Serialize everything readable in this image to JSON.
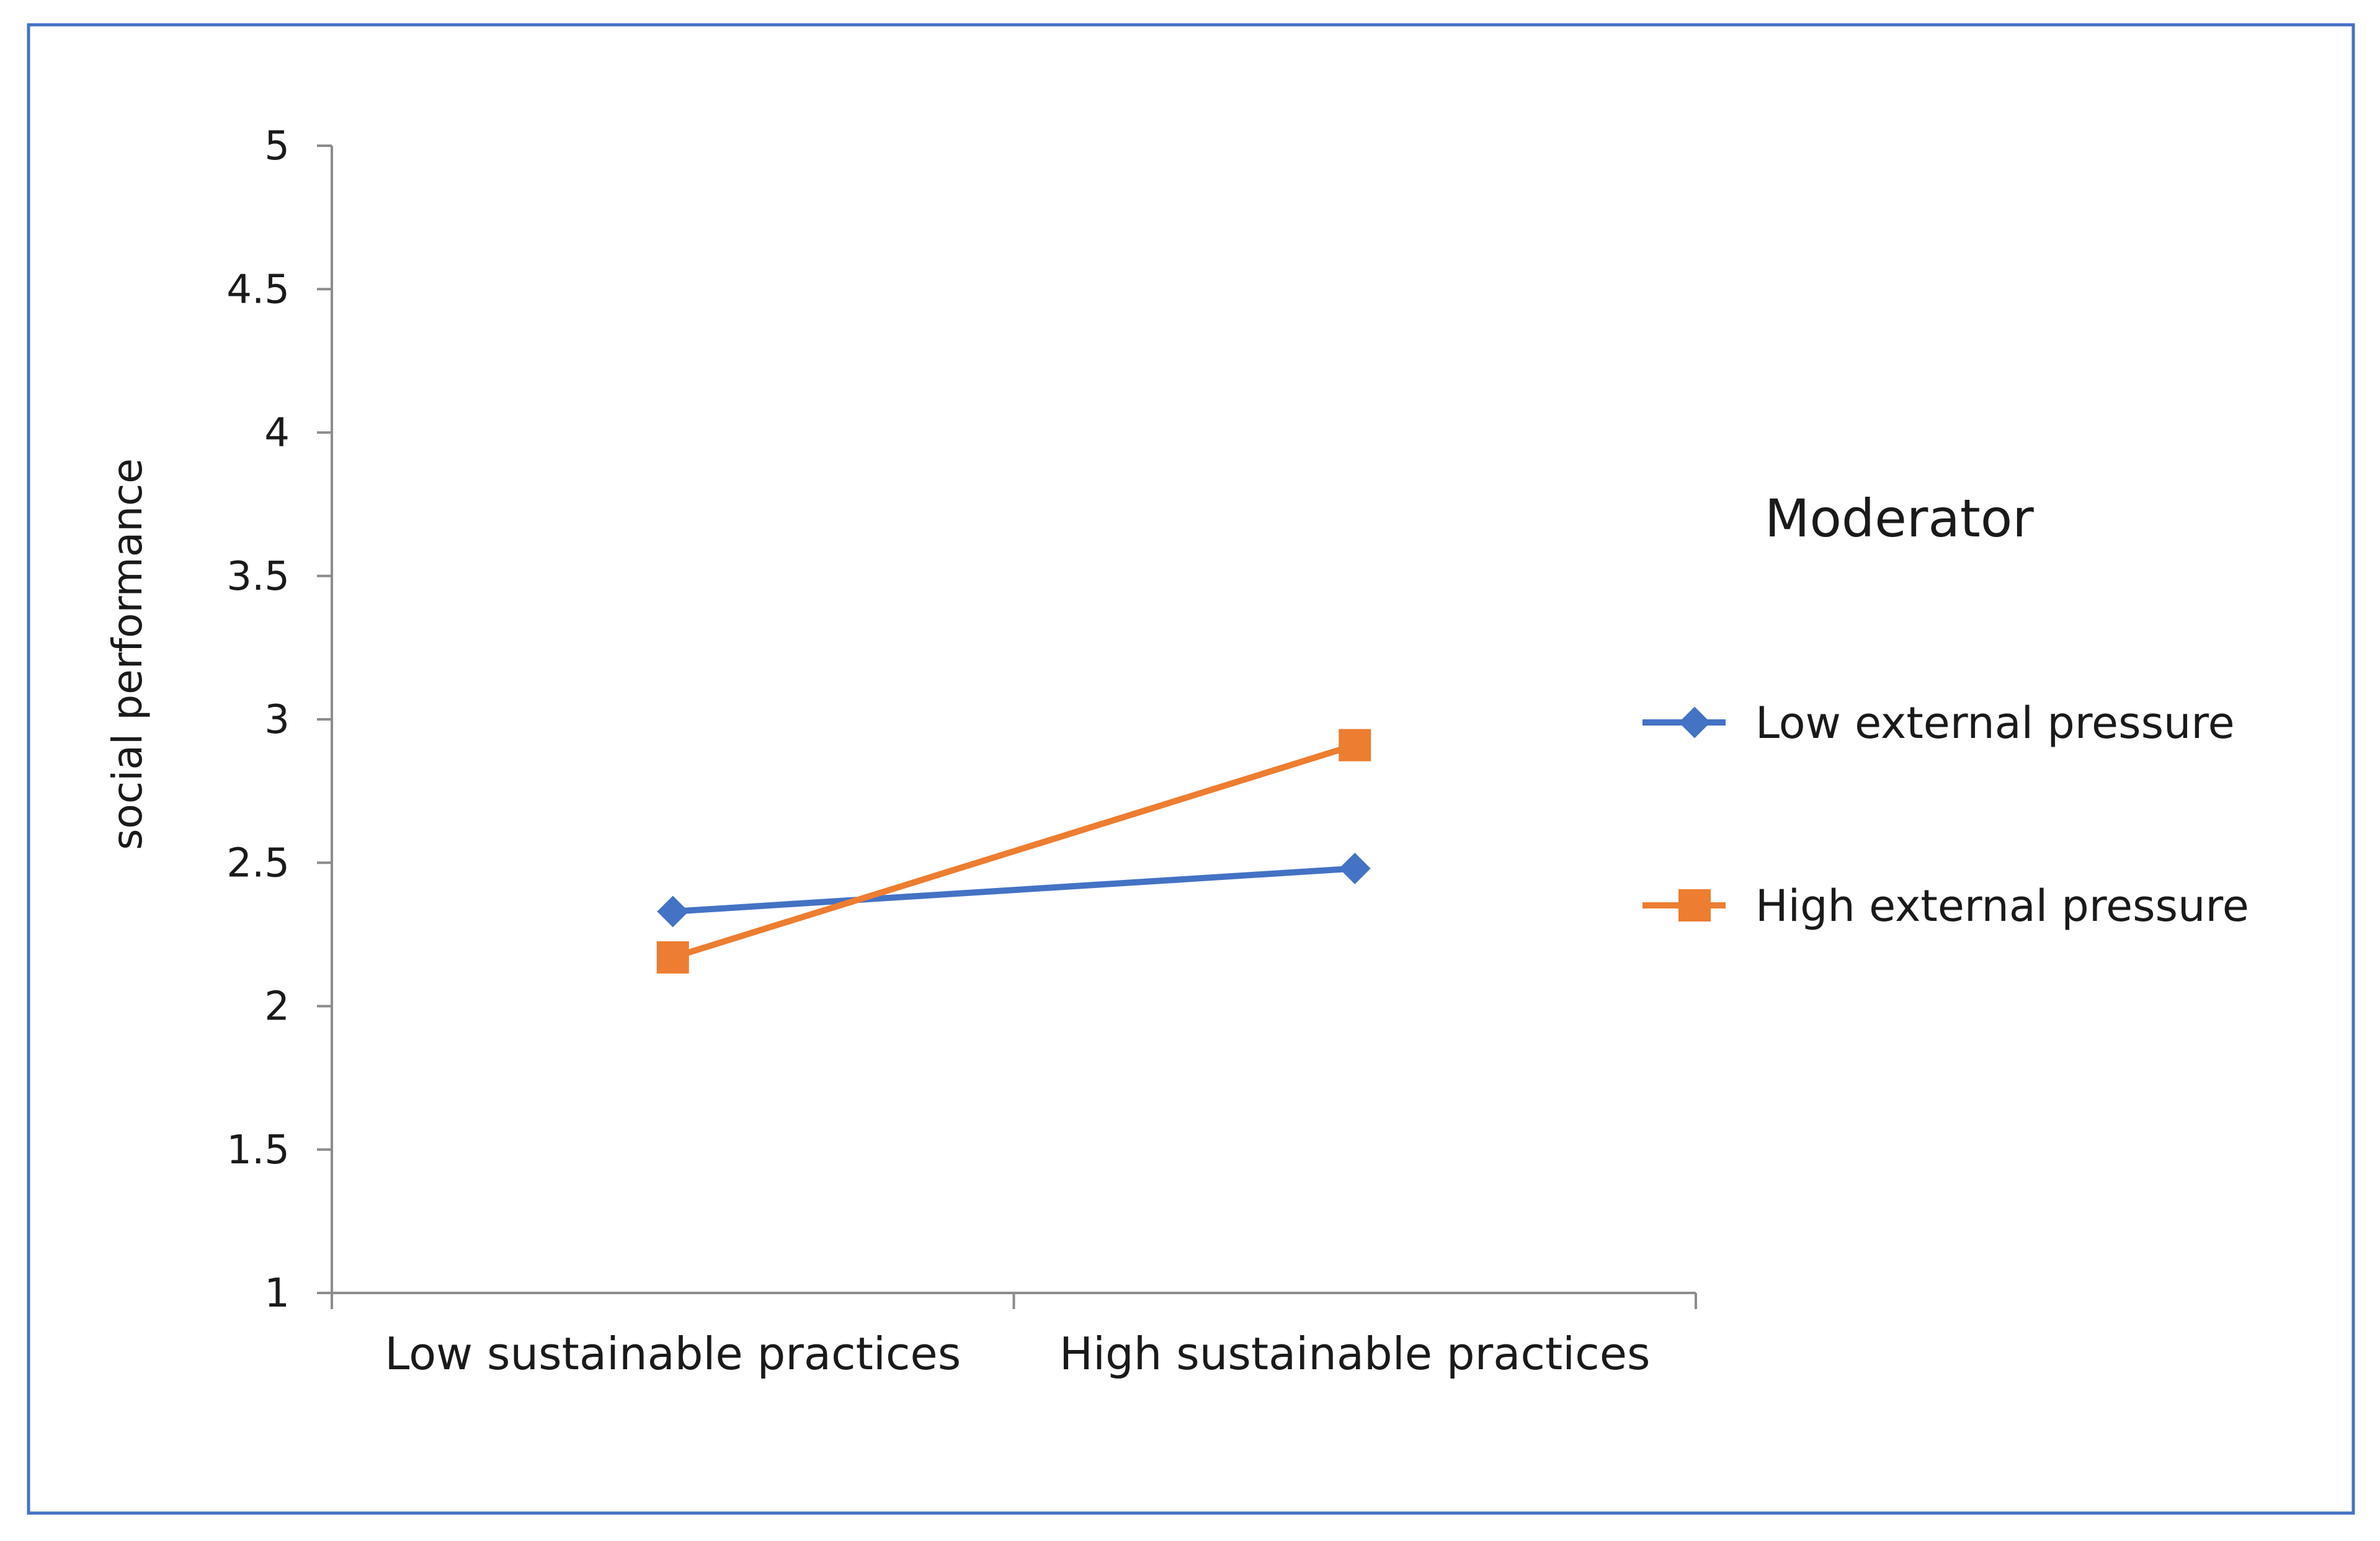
{
  "chart_data": {
    "type": "line",
    "title": "",
    "xlabel": "",
    "ylabel": "social performance",
    "ylim": [
      1,
      5
    ],
    "yticks": [
      1,
      1.5,
      2,
      2.5,
      3,
      3.5,
      4,
      4.5,
      5
    ],
    "ytick_labels": [
      "1",
      "1.5",
      "2",
      "2.5",
      "3",
      "3.5",
      "4",
      "4.5",
      "5"
    ],
    "categories": [
      "Low sustainable practices",
      "High sustainable practices"
    ],
    "grid": false,
    "legend": {
      "title": "Moderator",
      "position": "right"
    },
    "series": [
      {
        "name": "Low external pressure",
        "values": [
          2.33,
          2.48
        ],
        "color": "#4472C4",
        "marker": "diamond"
      },
      {
        "name": "High external pressure",
        "values": [
          2.17,
          2.91
        ],
        "color": "#ED7D31",
        "marker": "square"
      }
    ]
  },
  "colors": {
    "frame": "#4472C4",
    "axis": "#8c8c8c",
    "text": "#1a1a1a"
  }
}
